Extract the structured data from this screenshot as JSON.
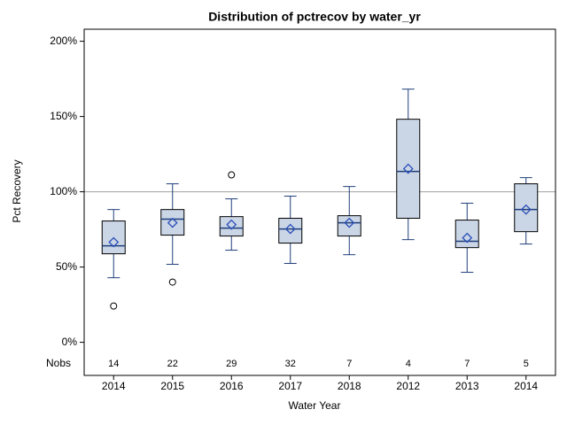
{
  "chart_data": {
    "type": "box",
    "title": "Distribution of pctrecov by water_yr",
    "xlabel": "Water Year",
    "ylabel": "Pct Recovery",
    "categories": [
      "2014",
      "2015",
      "2016",
      "2017",
      "2018",
      "2012",
      "2013",
      "2014"
    ],
    "boxes": [
      {
        "whisker_low": 42.9,
        "q1": 58.8,
        "median": 64.1,
        "q3": 80.6,
        "whisker_high": 88.2,
        "mean": 66.5,
        "outliers": [
          24.1
        ]
      },
      {
        "whisker_low": 51.8,
        "q1": 71.2,
        "median": 81.8,
        "q3": 88.2,
        "whisker_high": 105.3,
        "mean": 79.4,
        "outliers": [
          40
        ]
      },
      {
        "whisker_low": 61.2,
        "q1": 70.6,
        "median": 75.9,
        "q3": 83.5,
        "whisker_high": 95.3,
        "mean": 78.2,
        "outliers": [
          111.2
        ]
      },
      {
        "whisker_low": 52.4,
        "q1": 65.9,
        "median": 75.3,
        "q3": 82.4,
        "whisker_high": 97.1,
        "mean": 75.3,
        "outliers": []
      },
      {
        "whisker_low": 58.2,
        "q1": 70.6,
        "median": 79.4,
        "q3": 84.1,
        "whisker_high": 103.5,
        "mean": 79.4,
        "outliers": []
      },
      {
        "whisker_low": 68.2,
        "q1": 82.4,
        "median": 113.5,
        "q3": 148.2,
        "whisker_high": 168.2,
        "mean": 115.3,
        "outliers": []
      },
      {
        "whisker_low": 46.5,
        "q1": 62.9,
        "median": 67.1,
        "q3": 81.2,
        "whisker_high": 92.4,
        "mean": 69.4,
        "outliers": []
      },
      {
        "whisker_low": 65.3,
        "q1": 73.5,
        "median": 88.2,
        "q3": 105.3,
        "whisker_high": 109.4,
        "mean": 88.2,
        "outliers": []
      }
    ],
    "nobs_label": "Nobs",
    "nobs": [
      14,
      22,
      29,
      32,
      7,
      4,
      7,
      5
    ],
    "reference_line": 100,
    "box_color": "#cad5e6",
    "line_color": "#1f3e7a",
    "reference_color": "#a0a0a0",
    "ylim": [
      -22,
      208
    ],
    "yticks": [
      {
        "value": 0,
        "label": "0%"
      },
      {
        "value": 50,
        "label": "50%"
      },
      {
        "value": 100,
        "label": "100%"
      },
      {
        "value": 150,
        "label": "150%"
      },
      {
        "value": 200,
        "label": "200%"
      }
    ]
  }
}
